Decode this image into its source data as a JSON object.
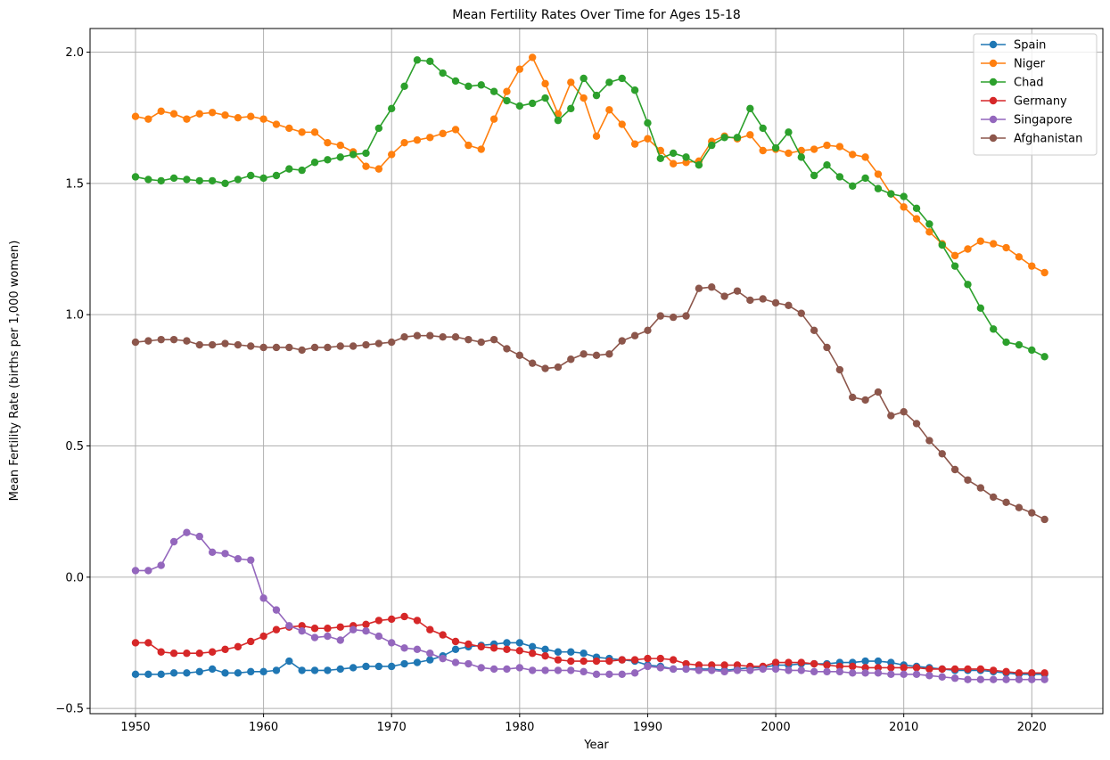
{
  "chart_data": {
    "type": "line",
    "title": "Mean Fertility Rates Over Time for Ages 15-18",
    "xlabel": "Year",
    "ylabel": "Mean Fertility Rate (births per 1,000 women)",
    "xlim": [
      1946.45,
      1925.55
    ],
    "x_ticks": [
      1950,
      1960,
      1970,
      1980,
      1990,
      2000,
      2010,
      2020
    ],
    "ylim": [
      -0.52,
      2.09
    ],
    "y_ticks": [
      -0.5,
      0.0,
      0.5,
      1.0,
      1.5,
      2.0
    ],
    "y_tick_labels": [
      "−0.5",
      "0.0",
      "0.5",
      "1.0",
      "1.5",
      "2.0"
    ],
    "grid": true,
    "legend_position": "top-right",
    "x": [
      1950,
      1951,
      1952,
      1953,
      1954,
      1955,
      1956,
      1957,
      1958,
      1959,
      1960,
      1961,
      1962,
      1963,
      1964,
      1965,
      1966,
      1967,
      1968,
      1969,
      1970,
      1971,
      1972,
      1973,
      1974,
      1975,
      1976,
      1977,
      1978,
      1979,
      1980,
      1981,
      1982,
      1983,
      1984,
      1985,
      1986,
      1987,
      1988,
      1989,
      1990,
      1991,
      1992,
      1993,
      1994,
      1995,
      1996,
      1997,
      1998,
      1999,
      2000,
      2001,
      2002,
      2003,
      2004,
      2005,
      2006,
      2007,
      2008,
      2009,
      2010,
      2011,
      2012,
      2013,
      2014,
      2015,
      2016,
      2017,
      2018,
      2019,
      2020,
      2021
    ],
    "series": [
      {
        "name": "Spain",
        "color": "#1f77b4",
        "values": [
          -0.37,
          -0.37,
          -0.37,
          -0.365,
          -0.365,
          -0.36,
          -0.35,
          -0.365,
          -0.365,
          -0.36,
          -0.36,
          -0.355,
          -0.32,
          -0.355,
          -0.355,
          -0.355,
          -0.35,
          -0.345,
          -0.34,
          -0.34,
          -0.34,
          -0.33,
          -0.325,
          -0.315,
          -0.3,
          -0.275,
          -0.265,
          -0.26,
          -0.255,
          -0.25,
          -0.25,
          -0.265,
          -0.275,
          -0.285,
          -0.285,
          -0.29,
          -0.305,
          -0.31,
          -0.315,
          -0.32,
          -0.335,
          -0.34,
          -0.35,
          -0.35,
          -0.35,
          -0.35,
          -0.355,
          -0.35,
          -0.345,
          -0.345,
          -0.335,
          -0.335,
          -0.33,
          -0.33,
          -0.33,
          -0.325,
          -0.325,
          -0.32,
          -0.32,
          -0.325,
          -0.335,
          -0.34,
          -0.345,
          -0.35,
          -0.355,
          -0.355,
          -0.355,
          -0.36,
          -0.365,
          -0.37,
          -0.37,
          -0.37
        ]
      },
      {
        "name": "Niger",
        "color": "#ff7f0e",
        "values": [
          1.755,
          1.745,
          1.775,
          1.765,
          1.745,
          1.765,
          1.77,
          1.76,
          1.75,
          1.755,
          1.745,
          1.725,
          1.71,
          1.695,
          1.695,
          1.655,
          1.645,
          1.62,
          1.565,
          1.555,
          1.61,
          1.655,
          1.665,
          1.675,
          1.69,
          1.705,
          1.645,
          1.63,
          1.745,
          1.85,
          1.935,
          1.98,
          1.88,
          1.765,
          1.885,
          1.825,
          1.68,
          1.78,
          1.725,
          1.65,
          1.67,
          1.625,
          1.575,
          1.58,
          1.585,
          1.66,
          1.68,
          1.67,
          1.685,
          1.625,
          1.63,
          1.615,
          1.625,
          1.63,
          1.645,
          1.64,
          1.61,
          1.6,
          1.535,
          1.46,
          1.41,
          1.365,
          1.315,
          1.27,
          1.225,
          1.25,
          1.28,
          1.27,
          1.255,
          1.22,
          1.185,
          1.16
        ]
      },
      {
        "name": "Chad",
        "color": "#2ca02c",
        "values": [
          1.525,
          1.515,
          1.51,
          1.52,
          1.515,
          1.51,
          1.51,
          1.5,
          1.515,
          1.53,
          1.52,
          1.53,
          1.555,
          1.55,
          1.58,
          1.59,
          1.6,
          1.61,
          1.615,
          1.71,
          1.785,
          1.87,
          1.97,
          1.965,
          1.92,
          1.89,
          1.87,
          1.875,
          1.85,
          1.815,
          1.795,
          1.805,
          1.825,
          1.74,
          1.785,
          1.9,
          1.835,
          1.885,
          1.9,
          1.855,
          1.73,
          1.595,
          1.615,
          1.6,
          1.57,
          1.645,
          1.675,
          1.675,
          1.785,
          1.71,
          1.635,
          1.695,
          1.6,
          1.53,
          1.57,
          1.525,
          1.49,
          1.52,
          1.48,
          1.46,
          1.45,
          1.405,
          1.345,
          1.265,
          1.185,
          1.115,
          1.025,
          0.945,
          0.895,
          0.885,
          0.865,
          0.84
        ]
      },
      {
        "name": "Germany",
        "color": "#d62728",
        "values": [
          -0.25,
          -0.25,
          -0.285,
          -0.29,
          -0.29,
          -0.29,
          -0.285,
          -0.275,
          -0.265,
          -0.245,
          -0.225,
          -0.2,
          -0.19,
          -0.185,
          -0.195,
          -0.195,
          -0.19,
          -0.185,
          -0.18,
          -0.165,
          -0.16,
          -0.15,
          -0.165,
          -0.2,
          -0.22,
          -0.245,
          -0.255,
          -0.265,
          -0.27,
          -0.275,
          -0.28,
          -0.29,
          -0.3,
          -0.315,
          -0.32,
          -0.32,
          -0.32,
          -0.32,
          -0.315,
          -0.315,
          -0.31,
          -0.31,
          -0.315,
          -0.33,
          -0.335,
          -0.335,
          -0.335,
          -0.335,
          -0.34,
          -0.34,
          -0.325,
          -0.325,
          -0.325,
          -0.33,
          -0.335,
          -0.34,
          -0.34,
          -0.345,
          -0.345,
          -0.345,
          -0.345,
          -0.345,
          -0.35,
          -0.35,
          -0.35,
          -0.35,
          -0.35,
          -0.355,
          -0.36,
          -0.365,
          -0.365,
          -0.365
        ]
      },
      {
        "name": "Singapore",
        "color": "#9467bd",
        "values": [
          0.025,
          0.025,
          0.045,
          0.135,
          0.17,
          0.155,
          0.095,
          0.09,
          0.07,
          0.065,
          -0.08,
          -0.125,
          -0.185,
          -0.205,
          -0.23,
          -0.225,
          -0.24,
          -0.2,
          -0.205,
          -0.225,
          -0.25,
          -0.27,
          -0.275,
          -0.29,
          -0.31,
          -0.325,
          -0.33,
          -0.345,
          -0.35,
          -0.35,
          -0.345,
          -0.355,
          -0.355,
          -0.355,
          -0.355,
          -0.36,
          -0.37,
          -0.37,
          -0.37,
          -0.365,
          -0.34,
          -0.345,
          -0.35,
          -0.35,
          -0.355,
          -0.355,
          -0.36,
          -0.355,
          -0.355,
          -0.35,
          -0.35,
          -0.355,
          -0.355,
          -0.36,
          -0.36,
          -0.36,
          -0.365,
          -0.365,
          -0.365,
          -0.37,
          -0.37,
          -0.37,
          -0.375,
          -0.38,
          -0.385,
          -0.39,
          -0.39,
          -0.39,
          -0.39,
          -0.39,
          -0.39,
          -0.39
        ]
      },
      {
        "name": "Afghanistan",
        "color": "#8c564b",
        "values": [
          0.895,
          0.9,
          0.905,
          0.905,
          0.9,
          0.885,
          0.885,
          0.89,
          0.885,
          0.88,
          0.875,
          0.875,
          0.875,
          0.865,
          0.875,
          0.875,
          0.88,
          0.88,
          0.885,
          0.89,
          0.895,
          0.915,
          0.92,
          0.92,
          0.915,
          0.915,
          0.905,
          0.895,
          0.905,
          0.87,
          0.845,
          0.815,
          0.795,
          0.8,
          0.83,
          0.85,
          0.845,
          0.85,
          0.9,
          0.92,
          0.94,
          0.995,
          0.99,
          0.995,
          1.1,
          1.105,
          1.07,
          1.09,
          1.055,
          1.06,
          1.045,
          1.035,
          1.005,
          0.94,
          0.875,
          0.79,
          0.685,
          0.675,
          0.705,
          0.615,
          0.63,
          0.585,
          0.52,
          0.47,
          0.41,
          0.37,
          0.34,
          0.305,
          0.285,
          0.265,
          0.245,
          0.22
        ]
      }
    ]
  }
}
